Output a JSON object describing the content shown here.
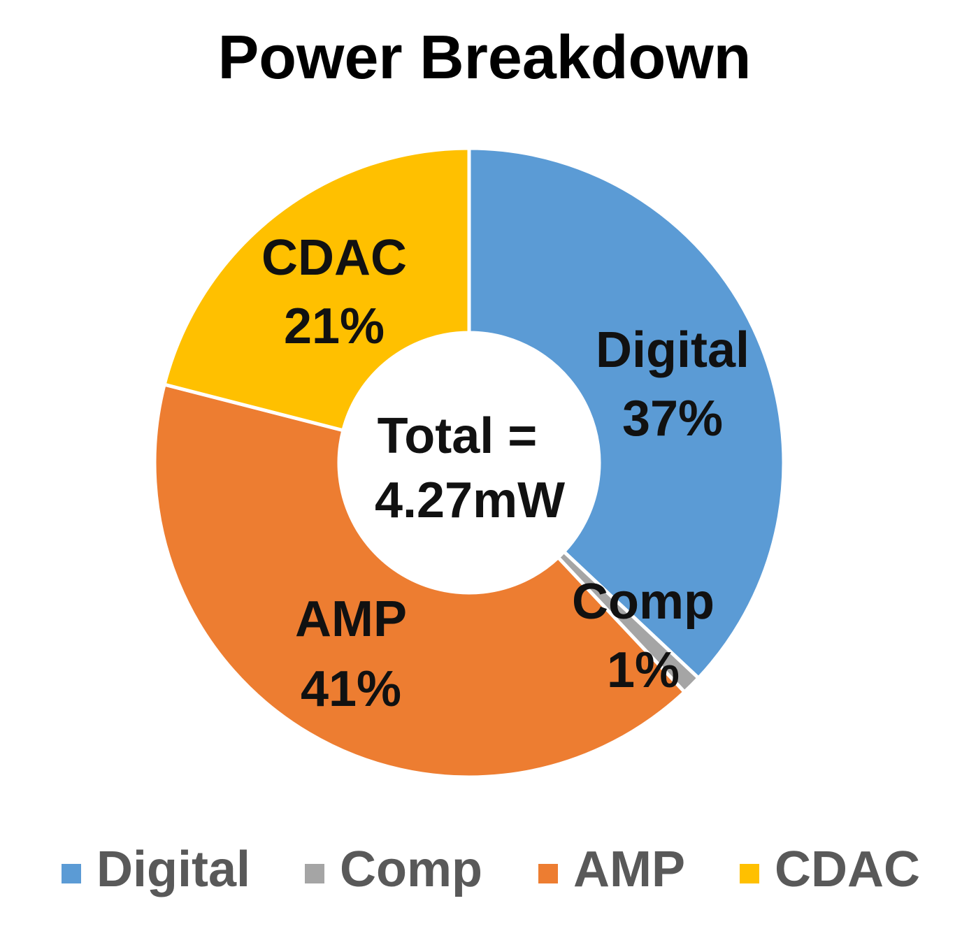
{
  "chart_data": {
    "type": "pie",
    "variant": "donut",
    "title": "Power Breakdown",
    "center_label": [
      "Total =",
      "4.27mW"
    ],
    "slices": [
      {
        "label": "Digital",
        "value": 37,
        "value_label": "37%",
        "color": "#5B9BD5"
      },
      {
        "label": "Comp",
        "value": 1,
        "value_label": "1%",
        "color": "#A5A5A5"
      },
      {
        "label": "AMP",
        "value": 41,
        "value_label": "41%",
        "color": "#ED7D31"
      },
      {
        "label": "CDAC",
        "value": 21,
        "value_label": "21%",
        "color": "#FFC000"
      }
    ],
    "legend": {
      "placement": "bottom",
      "items": [
        "Digital",
        "Comp",
        "AMP",
        "CDAC"
      ]
    }
  }
}
